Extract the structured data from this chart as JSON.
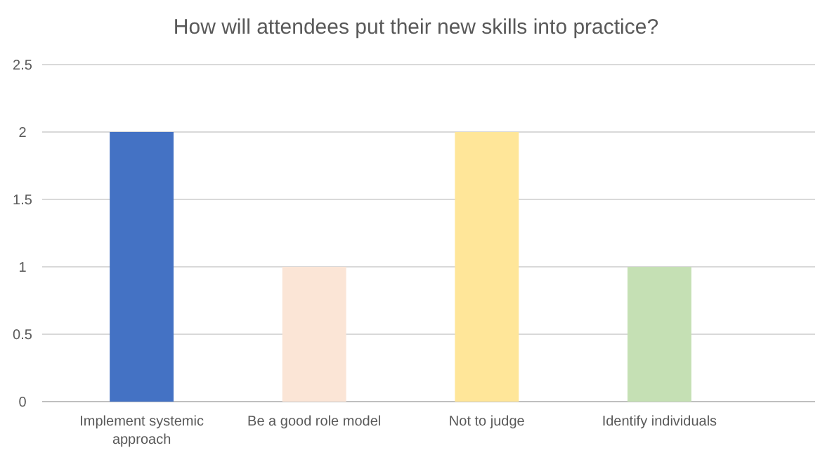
{
  "chart_data": {
    "type": "bar",
    "title": "How will attendees put their new skills into practice?",
    "categories": [
      "Implement systemic approach",
      "Be a good role model",
      "Not to judge",
      "Identify individuals"
    ],
    "values": [
      2,
      1,
      2,
      1
    ],
    "colors": [
      "#4472c4",
      "#fbe5d6",
      "#ffe699",
      "#c5e0b4"
    ],
    "ylim": [
      0,
      2.5
    ],
    "yticks": [
      0,
      0.5,
      1,
      1.5,
      2,
      2.5
    ],
    "grid": "y"
  }
}
